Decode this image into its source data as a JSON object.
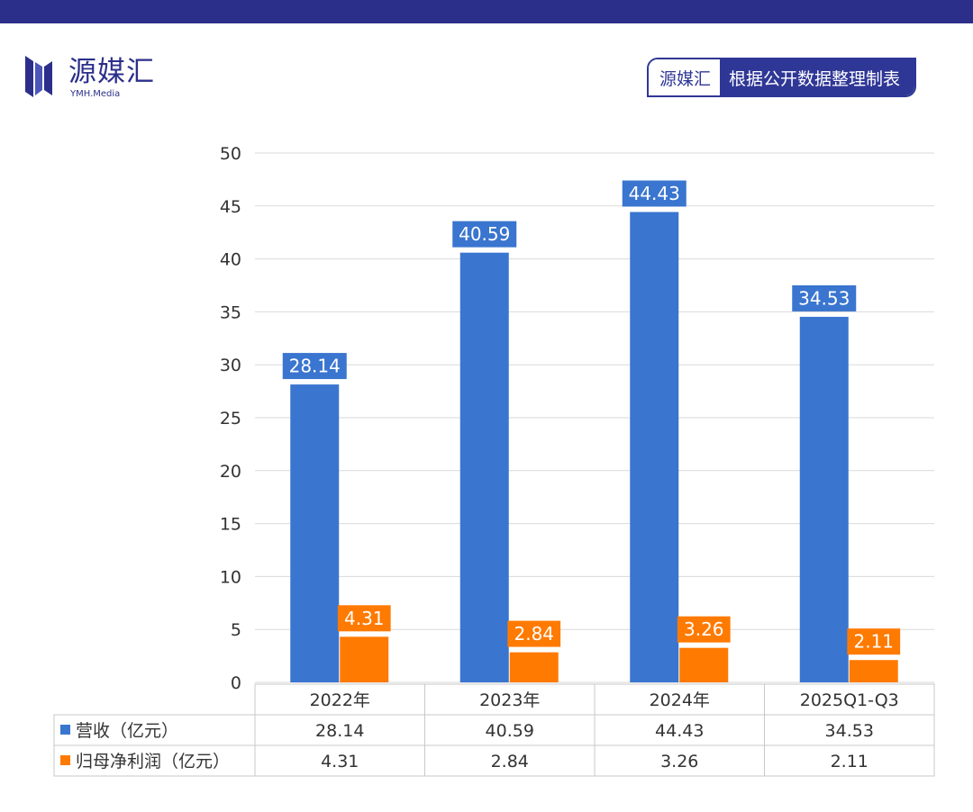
{
  "colors": {
    "header_bar": "#2b2f8a",
    "brand": "#2f3796",
    "revenue": "#3a75cf",
    "profit": "#ff7a00",
    "grid": "#d9d9d9",
    "table_border": "#c8c8c8"
  },
  "logo": {
    "icon": "ymh-media-logo-icon",
    "name": "源媒汇",
    "sub": "YMH.Media"
  },
  "source_badge": {
    "brand": "源媒汇",
    "text": "根据公开数据整理制表"
  },
  "chart_data": {
    "type": "bar",
    "categories": [
      "2022年",
      "2023年",
      "2024年",
      "2025Q1-Q3"
    ],
    "series": [
      {
        "name": "营收（亿元）",
        "values": [
          28.14,
          40.59,
          44.43,
          34.53
        ]
      },
      {
        "name": "归母净利润（亿元）",
        "values": [
          4.31,
          2.84,
          3.26,
          2.11
        ]
      }
    ],
    "value_labels": [
      [
        "28.14",
        "40.59",
        "44.43",
        "34.53"
      ],
      [
        "4.31",
        "2.84",
        "3.26",
        "2.11"
      ]
    ],
    "yticks": [
      "0",
      "5",
      "10",
      "15",
      "20",
      "25",
      "30",
      "35",
      "40",
      "45",
      "50"
    ],
    "ylim": [
      0,
      50
    ],
    "grid": true,
    "legend": "data-table-below"
  }
}
